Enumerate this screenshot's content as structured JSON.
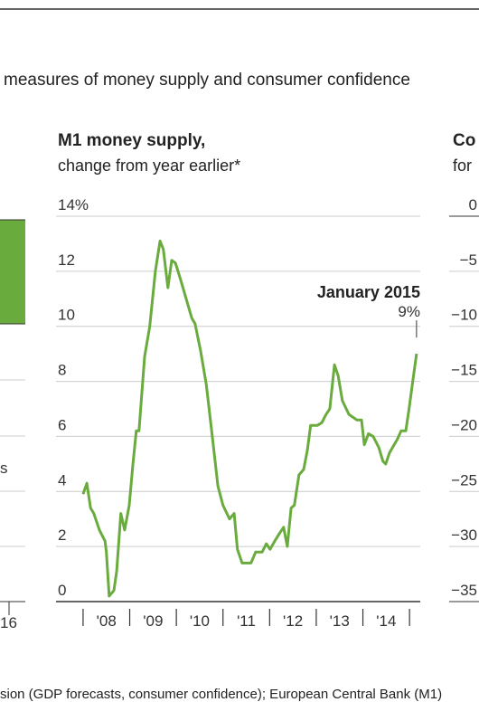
{
  "page_text": {
    "intro": "measures of money supply and consumer confidence",
    "source": "sion (GDP forecasts, consumer confidence); European Central Bank (M1)"
  },
  "left_fragment": {
    "label": "s",
    "x_label": "16"
  },
  "right_fragment": {
    "title": "Co",
    "subtitle": "for",
    "yticks": [
      {
        "value": 0,
        "label": "0"
      },
      {
        "value": -5,
        "label": "−5"
      },
      {
        "value": -10,
        "label": "−10"
      },
      {
        "value": -15,
        "label": "−15"
      },
      {
        "value": -20,
        "label": "−20"
      },
      {
        "value": -25,
        "label": "−25"
      },
      {
        "value": -30,
        "label": "−30"
      },
      {
        "value": -35,
        "label": "−35"
      }
    ]
  },
  "chart_data": {
    "type": "line",
    "title": "M1 money supply,",
    "subtitle": "change from year earlier*",
    "annotation": {
      "title": "January 2015",
      "label": "9%",
      "x": 2015.15,
      "value": 9
    },
    "x": [
      2008.0,
      2008.08,
      2008.16,
      2008.23,
      2008.35,
      2008.47,
      2008.5,
      2008.56,
      2008.66,
      2008.72,
      2008.81,
      2008.89,
      2008.99,
      2009.07,
      2009.14,
      2009.2,
      2009.32,
      2009.43,
      2009.55,
      2009.65,
      2009.72,
      2009.82,
      2009.9,
      2009.98,
      2010.09,
      2010.21,
      2010.33,
      2010.4,
      2010.52,
      2010.64,
      2010.77,
      2010.89,
      2011.0,
      2011.14,
      2011.24,
      2011.31,
      2011.41,
      2011.53,
      2011.6,
      2011.7,
      2011.84,
      2011.93,
      2012.01,
      2012.11,
      2012.22,
      2012.3,
      2012.38,
      2012.46,
      2012.53,
      2012.63,
      2012.73,
      2012.81,
      2012.88,
      2013.02,
      2013.12,
      2013.21,
      2013.29,
      2013.39,
      2013.47,
      2013.56,
      2013.7,
      2013.87,
      2013.97,
      2014.03,
      2014.12,
      2014.22,
      2014.34,
      2014.43,
      2014.49,
      2014.57,
      2014.67,
      2014.74,
      2014.82,
      2014.92,
      2014.99,
      2015.07,
      2015.15
    ],
    "series": [
      {
        "name": "M1",
        "color": "#6aab3e",
        "values": [
          3.9,
          4.3,
          3.4,
          3.2,
          2.6,
          2.2,
          1.8,
          0.2,
          0.4,
          1.1,
          3.2,
          2.6,
          3.5,
          5.0,
          6.2,
          6.2,
          8.9,
          10.0,
          12.0,
          13.1,
          12.8,
          11.4,
          12.4,
          12.3,
          11.7,
          11.0,
          10.3,
          10.1,
          9.1,
          7.9,
          6.0,
          4.2,
          3.5,
          3.0,
          3.2,
          1.9,
          1.4,
          1.4,
          1.4,
          1.8,
          1.8,
          2.1,
          1.9,
          2.2,
          2.5,
          2.7,
          2.0,
          3.4,
          3.5,
          4.6,
          4.8,
          5.5,
          6.4,
          6.4,
          6.5,
          6.8,
          7.0,
          8.6,
          8.2,
          7.3,
          6.8,
          6.6,
          6.6,
          5.7,
          6.1,
          6.0,
          5.6,
          5.1,
          5.0,
          5.4,
          5.7,
          5.9,
          6.2,
          6.2,
          7.0,
          8.0,
          9.0
        ]
      }
    ],
    "xlim": [
      2007.42,
      2015.23
    ],
    "xticks": [
      {
        "value": 2008.5,
        "label": "'08"
      },
      {
        "value": 2009.5,
        "label": "'09"
      },
      {
        "value": 2010.5,
        "label": "'10"
      },
      {
        "value": 2011.5,
        "label": "'11"
      },
      {
        "value": 2012.5,
        "label": "'12"
      },
      {
        "value": 2013.5,
        "label": "'13"
      },
      {
        "value": 2014.5,
        "label": "'14"
      }
    ],
    "x_tick_marks": [
      2008,
      2009,
      2010,
      2011,
      2012,
      2013,
      2014,
      2015
    ],
    "ylim": [
      0,
      14
    ],
    "yticks": [
      0,
      2,
      4,
      6,
      8,
      10,
      12,
      {
        "value": 14,
        "label": "14%"
      }
    ],
    "grid": true
  }
}
